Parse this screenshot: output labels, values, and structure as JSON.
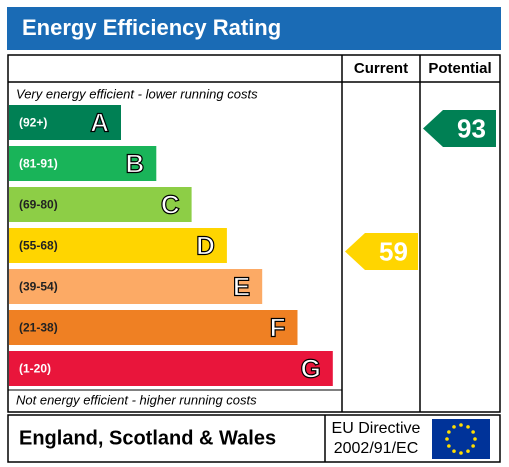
{
  "title": "Energy Efficiency Rating",
  "headers": {
    "current": "Current",
    "potential": "Potential"
  },
  "top_note": "Very energy efficient - lower running costs",
  "bottom_note": "Not energy efficient - higher running costs",
  "bands": [
    {
      "range": "(92+)",
      "letter": "A",
      "color": "#008054"
    },
    {
      "range": "(81-91)",
      "letter": "B",
      "color": "#19b459"
    },
    {
      "range": "(69-80)",
      "letter": "C",
      "color": "#8dce46"
    },
    {
      "range": "(55-68)",
      "letter": "D",
      "color": "#ffd500"
    },
    {
      "range": "(39-54)",
      "letter": "E",
      "color": "#fcaa65"
    },
    {
      "range": "(21-38)",
      "letter": "F",
      "color": "#ef8023"
    },
    {
      "range": "(1-20)",
      "letter": "G",
      "color": "#e9153b"
    }
  ],
  "current": 59,
  "potential": 93,
  "footer": {
    "region": "England, Scotland & Wales",
    "directive_line1": "EU Directive",
    "directive_line2": "2002/91/EC"
  }
}
